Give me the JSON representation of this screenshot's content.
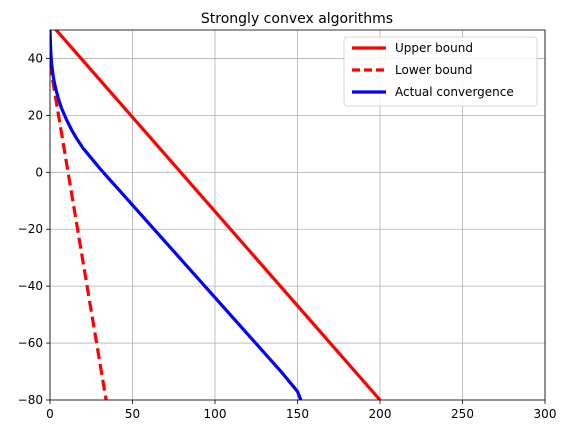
{
  "chart_data": {
    "type": "line",
    "title": "Strongly convex algorithms",
    "xlabel": "",
    "ylabel": "",
    "xlim": [
      0,
      300
    ],
    "ylim": [
      -80,
      50
    ],
    "xticks": [
      0,
      50,
      100,
      150,
      200,
      250,
      300
    ],
    "yticks": [
      -80,
      -60,
      -40,
      -20,
      0,
      20,
      40
    ],
    "xtick_labels": [
      "0",
      "50",
      "100",
      "150",
      "200",
      "250",
      "300"
    ],
    "ytick_labels": [
      "−80",
      "−60",
      "−40",
      "−20",
      "0",
      "20",
      "40"
    ],
    "grid": true,
    "legend_position": "top-right",
    "series": [
      {
        "name": "Upper bound",
        "color": "#ff0000",
        "style": "solid",
        "x": [
          0,
          3,
          200
        ],
        "y": [
          52,
          50.5,
          -80
        ]
      },
      {
        "name": "Lower bound",
        "color": "#ff0000",
        "style": "dashed",
        "x": [
          0,
          34
        ],
        "y": [
          38,
          -80
        ]
      },
      {
        "name": "Actual convergence",
        "color": "#0000ff",
        "style": "solid",
        "x": [
          0,
          0.5,
          1,
          2,
          3,
          5,
          7,
          10,
          13,
          16,
          20,
          25,
          30,
          35,
          40,
          50,
          60,
          70,
          80,
          90,
          100,
          110,
          120,
          130,
          140,
          150,
          152
        ],
        "y": [
          50,
          42,
          38,
          33.5,
          30.5,
          26,
          22.5,
          18.5,
          15,
          12,
          8.5,
          5,
          1.5,
          -1.8,
          -5,
          -11.5,
          -18,
          -24.5,
          -31,
          -37.5,
          -44,
          -50.5,
          -57,
          -63.5,
          -70,
          -77,
          -80
        ]
      }
    ]
  }
}
